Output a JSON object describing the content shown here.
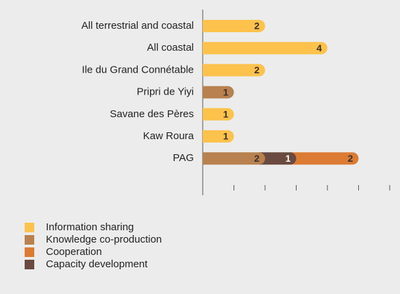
{
  "chart_data": {
    "type": "stacked-barh",
    "categories": [
      "All terrestrial and coastal",
      "All coastal",
      "Ile du Grand Connétable",
      "Pripri de Yiyi",
      "Savane des Pères",
      "Kaw Roura",
      "PAG"
    ],
    "series": [
      {
        "name": "Information sharing",
        "color": "#fcc24c",
        "values": [
          2,
          4,
          2,
          null,
          1,
          1,
          null
        ]
      },
      {
        "name": "Knowledge co-production",
        "color": "#b8814f",
        "values": [
          null,
          null,
          null,
          1,
          null,
          null,
          2
        ]
      },
      {
        "name": "Capacity development",
        "color": "#6a4a40",
        "values": [
          null,
          null,
          null,
          null,
          null,
          null,
          1
        ]
      },
      {
        "name": "Cooperation",
        "color": "#dc7b34",
        "values": [
          null,
          null,
          null,
          null,
          null,
          null,
          2
        ]
      }
    ],
    "legend_order": [
      0,
      1,
      3,
      2
    ],
    "xlim": [
      0,
      6
    ],
    "xticks": [
      1,
      2,
      3,
      4,
      5,
      6
    ]
  }
}
